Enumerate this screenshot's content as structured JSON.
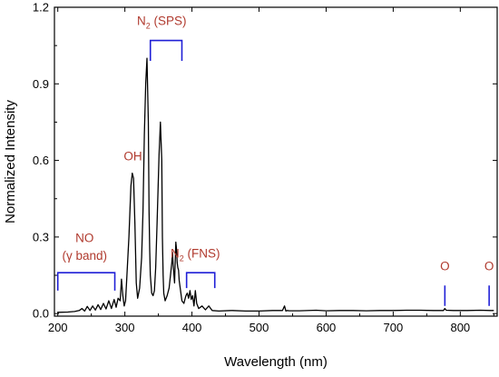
{
  "chart_data": {
    "type": "line",
    "xlabel": "Wavelength (nm)",
    "ylabel": "Normalized Intensity",
    "xlim": [
      195,
      855
    ],
    "ylim": [
      -0.01,
      1.2
    ],
    "x_ticks": [
      200,
      300,
      400,
      500,
      600,
      700,
      800
    ],
    "x_tick_labels": [
      "200",
      "300",
      "400",
      "500",
      "600",
      "700",
      "800"
    ],
    "y_ticks": [
      0.0,
      0.3,
      0.6,
      0.9,
      1.2
    ],
    "y_tick_labels": [
      "0.0",
      "0.3",
      "0.6",
      "0.9",
      "1.2"
    ],
    "grid": false,
    "colors": {
      "line": "#000000",
      "bracket": "#1f1fd6",
      "annotation": "#b03a2e"
    },
    "series": [
      {
        "x": [
          200,
          215,
          225,
          232,
          236,
          240,
          244,
          248,
          252,
          256,
          260,
          264,
          268,
          272,
          276,
          280,
          284,
          287,
          290,
          293,
          295,
          297,
          299,
          301,
          303,
          306,
          309,
          311,
          313,
          315,
          317,
          319,
          322,
          325,
          327,
          329,
          331,
          333,
          335,
          336,
          337,
          338,
          340,
          342,
          344,
          346,
          348,
          351,
          353,
          355,
          356,
          357,
          358,
          360,
          363,
          366,
          368,
          370,
          371,
          372,
          374,
          375,
          376,
          377,
          378,
          379,
          380,
          381,
          383,
          385,
          388,
          391,
          393,
          395,
          397,
          399,
          401,
          403,
          405,
          407,
          410,
          415,
          420,
          425,
          430,
          440,
          460,
          480,
          500,
          520,
          535,
          538,
          540,
          542,
          545,
          560,
          585,
          600,
          620,
          640,
          660,
          680,
          700,
          720,
          740,
          760,
          775,
          777,
          779,
          790,
          810,
          830,
          845,
          850
        ],
        "y": [
          0.005,
          0.006,
          0.008,
          0.012,
          0.02,
          0.01,
          0.028,
          0.012,
          0.03,
          0.014,
          0.035,
          0.016,
          0.04,
          0.018,
          0.05,
          0.02,
          0.055,
          0.025,
          0.06,
          0.05,
          0.135,
          0.07,
          0.03,
          0.05,
          0.15,
          0.3,
          0.5,
          0.55,
          0.53,
          0.35,
          0.12,
          0.06,
          0.1,
          0.22,
          0.4,
          0.7,
          0.9,
          1.0,
          0.75,
          0.4,
          0.25,
          0.15,
          0.08,
          0.07,
          0.09,
          0.18,
          0.35,
          0.62,
          0.75,
          0.6,
          0.3,
          0.15,
          0.08,
          0.05,
          0.07,
          0.1,
          0.15,
          0.2,
          0.24,
          0.19,
          0.12,
          0.2,
          0.28,
          0.25,
          0.2,
          0.18,
          0.17,
          0.13,
          0.09,
          0.05,
          0.04,
          0.07,
          0.08,
          0.06,
          0.09,
          0.055,
          0.07,
          0.03,
          0.09,
          0.04,
          0.02,
          0.03,
          0.015,
          0.03,
          0.012,
          0.01,
          0.012,
          0.01,
          0.01,
          0.012,
          0.012,
          0.03,
          0.01,
          0.012,
          0.011,
          0.011,
          0.013,
          0.011,
          0.012,
          0.012,
          0.011,
          0.012,
          0.012,
          0.013,
          0.013,
          0.012,
          0.012,
          0.02,
          0.013,
          0.012,
          0.012,
          0.013,
          0.012,
          0.012
        ]
      }
    ],
    "annotations": [
      {
        "text": "N",
        "sub": "2",
        "rest": " (SPS)",
        "x": 355,
        "y": 1.13,
        "bracket": [
          338,
          385,
          1.07,
          0.99
        ]
      },
      {
        "text": "OH",
        "x": 312,
        "y": 0.6
      },
      {
        "text": "NO",
        "x": 240,
        "y": 0.28
      },
      {
        "text": "(γ band)",
        "x": 240,
        "y": 0.21,
        "bracket": [
          200,
          285,
          0.16,
          0.09
        ]
      },
      {
        "text": "N",
        "sub": "2",
        "rest": " (FNS)",
        "x": 405,
        "y": 0.22,
        "bracket": [
          392,
          434,
          0.16,
          0.1
        ]
      },
      {
        "text": "O",
        "x": 777,
        "y": 0.17,
        "tick": [
          777,
          0.11,
          0.03
        ]
      },
      {
        "text": "O",
        "x": 843,
        "y": 0.17,
        "tick": [
          843,
          0.11,
          0.03
        ]
      }
    ]
  }
}
